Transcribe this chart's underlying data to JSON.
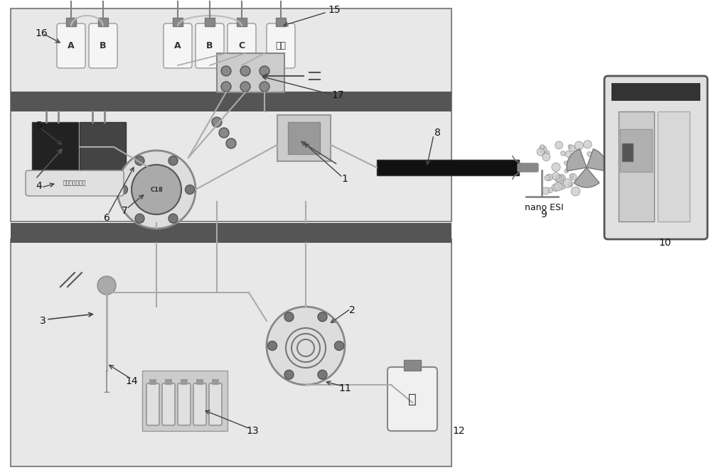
{
  "bg_color": "#ffffff",
  "panel_bg_upper": "#e8e8e8",
  "panel_bg_lower": "#e8e8e8",
  "panel_border": "#888888",
  "dark_bar_color": "#555555",
  "bottle_colors": {
    "body": "#f0f0f0",
    "cap": "#888888",
    "label_A": "A",
    "label_B": "B",
    "label_C": "C",
    "label_wash": "洗针"
  },
  "labels": {
    "1": "1",
    "2": "2",
    "3": "3",
    "4": "4",
    "5": "5",
    "6": "6",
    "7": "7",
    "8": "8",
    "9": "nano ESI",
    "10": "10",
    "11": "11",
    "12": "12",
    "13": "13",
    "14": "14",
    "15": "15",
    "16": "16",
    "17": "17"
  },
  "label_4_text": "磷酸化肽捕获柱",
  "label_6_text": "C18",
  "label_waste": "废",
  "figsize": [
    10.0,
    6.62
  ],
  "dpi": 100
}
